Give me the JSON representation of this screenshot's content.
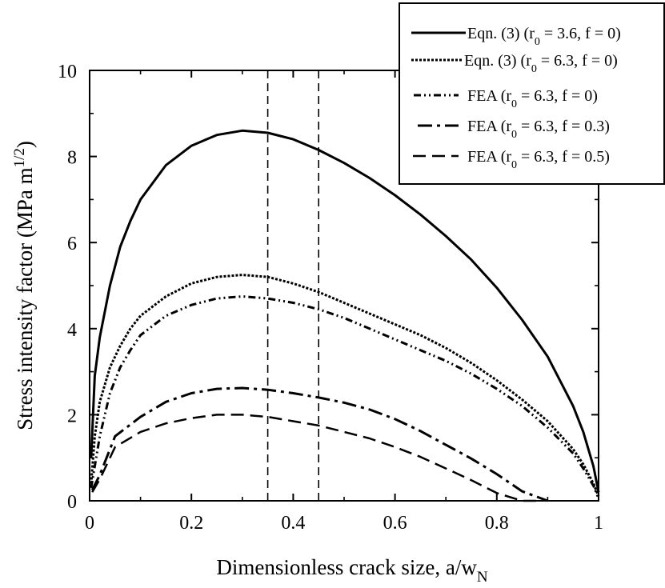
{
  "chart_data": {
    "type": "line",
    "xlabel": "Dimensionless crack size, a/w",
    "xlabel_sub": "N",
    "ylabel": "Stress intensity factor (MPa m",
    "ylabel_sup": "1/2",
    "ylabel_close": ")",
    "xlim": [
      0,
      1
    ],
    "ylim": [
      0,
      10
    ],
    "xticks": [
      0,
      0.2,
      0.4,
      0.6,
      0.8,
      1
    ],
    "xtick_labels": [
      "0",
      "0.2",
      "0.4",
      "0.6",
      "0.8",
      "1"
    ],
    "yticks": [
      0,
      2,
      4,
      6,
      8,
      10
    ],
    "ytick_labels": [
      "0",
      "2",
      "4",
      "6",
      "8",
      "10"
    ],
    "vlines": [
      0.35,
      0.45
    ],
    "legend_position": "top-right",
    "series": [
      {
        "name": "Eqn. (3)",
        "legend_r": "r",
        "legend_r_sub": "0",
        "legend_params": " = 3.6, f = 0)",
        "style": "solid",
        "x": [
          0.003,
          0.01,
          0.02,
          0.04,
          0.06,
          0.08,
          0.1,
          0.15,
          0.2,
          0.25,
          0.3,
          0.35,
          0.4,
          0.45,
          0.5,
          0.55,
          0.6,
          0.65,
          0.7,
          0.75,
          0.8,
          0.85,
          0.9,
          0.95,
          0.97,
          0.99,
          1.0
        ],
        "y": [
          1.0,
          2.9,
          3.8,
          5.0,
          5.9,
          6.5,
          7.0,
          7.8,
          8.25,
          8.5,
          8.6,
          8.55,
          8.4,
          8.15,
          7.85,
          7.5,
          7.1,
          6.65,
          6.15,
          5.6,
          4.95,
          4.2,
          3.35,
          2.2,
          1.6,
          0.8,
          0.2
        ]
      },
      {
        "name": "Eqn. (3)",
        "legend_r": "r",
        "legend_r_sub": "0",
        "legend_params": " = 6.3, f = 0)",
        "style": "dotted",
        "x": [
          0.003,
          0.01,
          0.02,
          0.04,
          0.06,
          0.08,
          0.1,
          0.15,
          0.2,
          0.25,
          0.3,
          0.35,
          0.4,
          0.45,
          0.5,
          0.55,
          0.6,
          0.65,
          0.7,
          0.75,
          0.8,
          0.85,
          0.9,
          0.95,
          0.97,
          0.99,
          1.0
        ],
        "y": [
          0.4,
          1.5,
          2.3,
          3.1,
          3.6,
          4.0,
          4.3,
          4.75,
          5.05,
          5.2,
          5.25,
          5.2,
          5.05,
          4.85,
          4.6,
          4.35,
          4.1,
          3.85,
          3.55,
          3.2,
          2.8,
          2.35,
          1.85,
          1.2,
          0.85,
          0.4,
          0.1
        ]
      },
      {
        "name": "FEA",
        "legend_r": "r",
        "legend_r_sub": "0",
        "legend_params": " = 6.3, f = 0)",
        "style": "dash-dot-dot",
        "x": [
          0.003,
          0.01,
          0.02,
          0.04,
          0.06,
          0.08,
          0.1,
          0.15,
          0.2,
          0.25,
          0.3,
          0.35,
          0.4,
          0.45,
          0.5,
          0.55,
          0.6,
          0.65,
          0.7,
          0.75,
          0.8,
          0.85,
          0.9,
          0.95,
          0.97,
          0.99,
          1.0
        ],
        "y": [
          0.3,
          0.8,
          1.5,
          2.5,
          3.1,
          3.5,
          3.85,
          4.3,
          4.55,
          4.7,
          4.75,
          4.7,
          4.6,
          4.45,
          4.25,
          4.0,
          3.75,
          3.5,
          3.25,
          2.95,
          2.6,
          2.2,
          1.7,
          1.1,
          0.75,
          0.35,
          0.05
        ]
      },
      {
        "name": "FEA",
        "legend_r": "r",
        "legend_r_sub": "0",
        "legend_params": " = 6.3, f = 0.3)",
        "style": "dash-dot",
        "x": [
          0.005,
          0.02,
          0.05,
          0.1,
          0.15,
          0.2,
          0.25,
          0.3,
          0.35,
          0.4,
          0.45,
          0.5,
          0.55,
          0.6,
          0.65,
          0.7,
          0.75,
          0.8,
          0.85,
          0.9
        ],
        "y": [
          0.25,
          0.6,
          1.5,
          1.95,
          2.3,
          2.5,
          2.6,
          2.62,
          2.58,
          2.5,
          2.4,
          2.28,
          2.12,
          1.9,
          1.62,
          1.3,
          0.98,
          0.62,
          0.22,
          0.0
        ]
      },
      {
        "name": "FEA",
        "legend_r": "r",
        "legend_r_sub": "0",
        "legend_params": " = 6.3, f = 0.5)",
        "style": "dashed",
        "x": [
          0.005,
          0.02,
          0.05,
          0.1,
          0.15,
          0.2,
          0.25,
          0.3,
          0.35,
          0.4,
          0.45,
          0.5,
          0.55,
          0.6,
          0.65,
          0.7,
          0.75,
          0.8,
          0.85,
          0.88
        ],
        "y": [
          0.2,
          0.5,
          1.25,
          1.6,
          1.8,
          1.92,
          2.0,
          2.0,
          1.95,
          1.85,
          1.75,
          1.6,
          1.45,
          1.25,
          1.02,
          0.75,
          0.48,
          0.18,
          0.0,
          0.0
        ]
      }
    ]
  }
}
